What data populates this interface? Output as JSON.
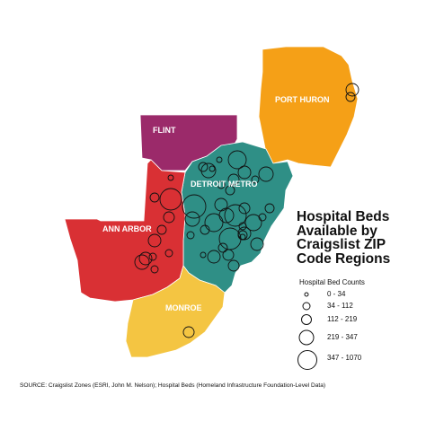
{
  "title": "Hospital Beds Available by Craigslist ZIP Code Regions",
  "regions": [
    {
      "name": "PORT HURON",
      "color": "#f5a017"
    },
    {
      "name": "FLINT",
      "color": "#9b2a6a"
    },
    {
      "name": "DETROIT METRO",
      "color": "#2f8f86"
    },
    {
      "name": "ANN ARBOR",
      "color": "#d93034"
    },
    {
      "name": "MONROE",
      "color": "#f4c542"
    }
  ],
  "legend": {
    "title": "Hospital Bed Counts",
    "classes": [
      "0 - 34",
      "34 - 112",
      "112 - 219",
      "219 - 347",
      "347 - 1070"
    ]
  },
  "source": "SOURCE: Craigslist Zones (ESRI, John M. Nelson); Hospital Beds (Homeland Infrastructure Foundation-Level Data)"
}
